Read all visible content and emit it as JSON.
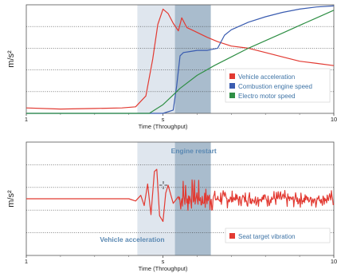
{
  "colors": {
    "band_light": "#dfe6ee",
    "band_dark": "#a9bccd",
    "red": "#e23a32",
    "blue": "#3a5cb0",
    "green": "#2f8f45",
    "legend_text": "#3f74a6",
    "annot_text": "#5b89b3"
  },
  "chart_data": [
    {
      "type": "line",
      "ylabel": "m/s²",
      "xlabel": "Time (Throughput)",
      "x_ticks": [
        {
          "value": 1,
          "label": "1"
        },
        {
          "value": 5,
          "label": "s"
        },
        {
          "value": 10,
          "label": "10"
        }
      ],
      "xlim": [
        1,
        10
      ],
      "ylim": [
        0,
        10
      ],
      "grid": "horizontal dotted",
      "legend_position": "lower-right",
      "shaded_intervals": [
        {
          "from": 4.25,
          "to": 5.35,
          "color": "band_light"
        },
        {
          "from": 5.35,
          "to": 6.4,
          "color": "band_dark"
        }
      ],
      "series": [
        {
          "name": "Vehicle acceleration",
          "color": "red",
          "x": [
            1,
            2,
            3,
            3.8,
            4.2,
            4.5,
            4.7,
            4.85,
            5.0,
            5.15,
            5.3,
            5.45,
            5.55,
            5.7,
            5.9,
            6.1,
            6.3,
            6.6,
            7.0,
            7.5,
            8.0,
            8.5,
            9.0,
            9.5,
            10
          ],
          "y": [
            0.5,
            0.4,
            0.45,
            0.5,
            0.6,
            1.6,
            5.0,
            8.2,
            9.6,
            9.2,
            8.3,
            7.6,
            8.8,
            7.9,
            7.6,
            7.3,
            7.0,
            6.6,
            6.2,
            6.0,
            5.6,
            5.2,
            4.8,
            4.6,
            4.4
          ]
        },
        {
          "name": "Combustion engine speed",
          "color": "blue",
          "x": [
            1,
            4.5,
            5.0,
            5.3,
            5.4,
            5.5,
            5.6,
            5.8,
            6.0,
            6.3,
            6.6,
            6.8,
            7.0,
            7.5,
            8.0,
            8.5,
            9.0,
            9.5,
            10
          ],
          "y": [
            0,
            0,
            0,
            0.3,
            2.5,
            5.3,
            5.6,
            5.7,
            5.8,
            5.8,
            6.0,
            7.2,
            7.7,
            8.4,
            8.9,
            9.3,
            9.6,
            9.8,
            9.9
          ]
        },
        {
          "name": "Electro motor speed",
          "color": "green",
          "x": [
            1,
            4.6,
            5.0,
            5.5,
            6.0,
            6.5,
            7.0,
            7.5,
            8.0,
            8.5,
            9.0,
            9.5,
            10
          ],
          "y": [
            0,
            0,
            0.8,
            2.3,
            3.5,
            4.4,
            5.2,
            6.0,
            6.7,
            7.4,
            8.1,
            8.8,
            9.5
          ]
        }
      ]
    },
    {
      "type": "line",
      "ylabel": "m/s²",
      "xlabel": "Time (Throughput)",
      "x_ticks": [
        {
          "value": 1,
          "label": "1"
        },
        {
          "value": 5,
          "label": "s"
        },
        {
          "value": 10,
          "label": "10"
        }
      ],
      "xlim": [
        1,
        10
      ],
      "ylim": [
        -5,
        5
      ],
      "grid": "horizontal dotted",
      "legend_position": "lower-right",
      "shaded_intervals": [
        {
          "from": 4.25,
          "to": 5.35,
          "color": "band_light"
        },
        {
          "from": 5.35,
          "to": 6.4,
          "color": "band_dark"
        }
      ],
      "annotations": [
        {
          "text": "Engine restart",
          "x": 5.9,
          "y": 4.0
        },
        {
          "text": "Vehicle acceleration",
          "x": 4.1,
          "y": -3.8
        }
      ],
      "series": [
        {
          "name": "Seat target vibration",
          "color": "red",
          "x": [
            1,
            3,
            4.0,
            4.2,
            4.35,
            4.45,
            4.55,
            4.65,
            4.75,
            4.82,
            4.9,
            5.0,
            5.08,
            5.15,
            5.3,
            5.45
          ],
          "y": [
            0,
            0,
            0,
            -0.2,
            0.3,
            -0.6,
            1.3,
            -1.4,
            2.4,
            2.6,
            -1.5,
            -2.0,
            0.5,
            1.2,
            -0.4,
            0.2
          ],
          "noise_after_x": 5.45,
          "noise_amplitude_start": 2.3,
          "noise_amplitude_end": 0.8
        }
      ]
    }
  ],
  "labels": {
    "top_ylabel": "m/s²",
    "bottom_ylabel": "m/s²",
    "top_xlabel": "Time (Throughput)",
    "bottom_xlabel": "Time (Throughput)",
    "legend_top": [
      "Vehicle acceleration",
      "Combustion engine speed",
      "Electro motor speed"
    ],
    "legend_bottom": [
      "Seat target vibration"
    ],
    "annot_engine": "Engine restart",
    "annot_vehicle": "Vehicle acceleration",
    "cursor_icon": "crosshair-cursor-icon"
  }
}
